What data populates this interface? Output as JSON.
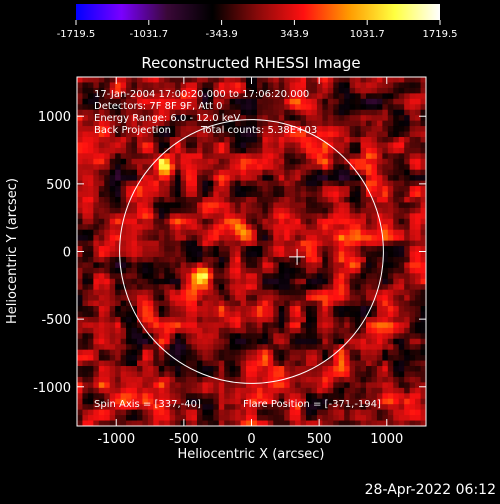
{
  "chart_data": {
    "type": "heatmap",
    "title": "Reconstructed RHESSI Image",
    "xlabel": "Heliocentric X (arcsec)",
    "ylabel": "Heliocentric Y (arcsec)",
    "xlim": [
      -1290,
      1290
    ],
    "ylim": [
      -1290,
      1290
    ],
    "x_ticks": [
      -1000,
      -500,
      0,
      500,
      1000
    ],
    "y_ticks": [
      -1000,
      -500,
      0,
      500,
      1000
    ],
    "grid": false,
    "colorbar": {
      "range": [
        -1719.5,
        1719.5
      ],
      "tick_values": [
        -1719.5,
        -1031.7,
        -343.9,
        343.9,
        1031.7,
        1719.5
      ],
      "tick_labels": [
        "-1719.5",
        "-1031.7",
        "-343.9",
        "343.9",
        "1031.7",
        "1719.5"
      ],
      "colors": [
        "#0000ff",
        "#7a00ff",
        "#3a0838",
        "#000000",
        "#8a0a0a",
        "#ff1010",
        "#ff9a00",
        "#ffff40",
        "#ffffff"
      ]
    },
    "info_lines": [
      "17-Jan-2004 17:00:20.000 to 17:06:20.000",
      "Detectors: 7F 8F 9F, Att 0",
      "Energy Range: 6.0 - 12.0 keV"
    ],
    "method": "Back Projection",
    "total_counts": "Total counts: 5.38E+03",
    "spin_axis": "Spin Axis = [337,-40]",
    "flare_position": "Flare Position = [-371,-194]",
    "solar_limb_radius_arcsec": 975,
    "cross_marker": [
      337,
      -40
    ],
    "hot_spots": [
      {
        "x": -371,
        "y": -194,
        "value": 1719.5
      },
      {
        "x": -640,
        "y": 640,
        "value": 1100
      },
      {
        "x": -80,
        "y": 150,
        "value": 800
      },
      {
        "x": 720,
        "y": -60,
        "value": 600
      }
    ]
  },
  "timestamp": "28-Apr-2022 06:12"
}
